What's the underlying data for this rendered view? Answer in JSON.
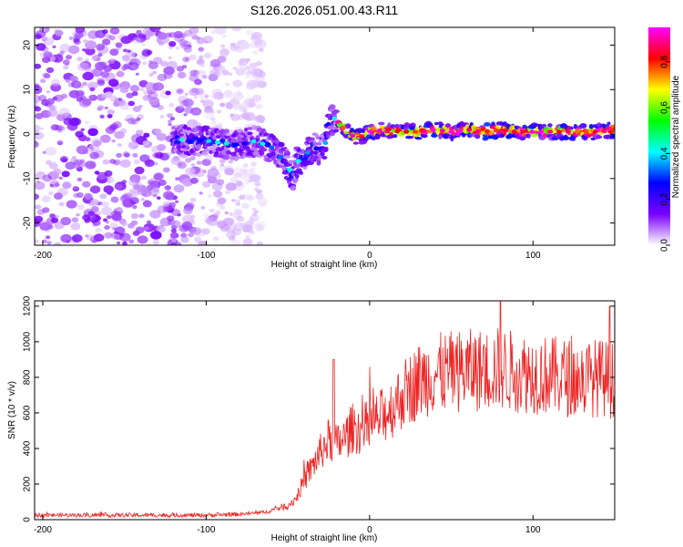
{
  "figure": {
    "title": "S126.2026.051.00.43.R11"
  },
  "chart_data": [
    {
      "type": "heatmap",
      "xlabel": "Height of straight line (km)",
      "ylabel": "Frequency (Hz)",
      "xlim": [
        -205,
        150
      ],
      "ylim": [
        -25,
        24
      ],
      "xticks": [
        -200,
        -100,
        0,
        100
      ],
      "yticks": [
        -20,
        -10,
        0,
        10,
        20
      ],
      "colorbar": {
        "label": "Normalized spectral amplitude",
        "range": [
          0,
          0.95
        ],
        "ticks": [
          0,
          0.2,
          0.4,
          0.6,
          0.8
        ],
        "tick_labels": [
          "0.0",
          "0.2",
          "0.4",
          "0.6",
          "0.8"
        ],
        "colormap": [
          "#ffffff",
          "#7a00ff",
          "#0000ff",
          "#00ffff",
          "#00ff00",
          "#ffff00",
          "#ff0000",
          "#ff00ff"
        ]
      },
      "ridge": {
        "description": "dominant-frequency trace",
        "x": [
          -120,
          -110,
          -100,
          -90,
          -80,
          -70,
          -60,
          -55,
          -50,
          -47,
          -45,
          -40,
          -35,
          -30,
          -27,
          -25,
          -22,
          -20,
          -18,
          -15,
          -10,
          -5,
          0,
          10,
          20,
          30,
          40,
          50,
          60,
          70,
          80,
          90,
          100,
          110,
          120,
          130,
          140,
          150
        ],
        "y": [
          -1,
          -1.5,
          -1.5,
          -2,
          -2.5,
          -1.5,
          -3,
          -5,
          -7,
          -10,
          -6.5,
          -5,
          -3,
          -3.5,
          -2,
          2,
          3.5,
          3.5,
          2.5,
          1,
          -0.5,
          -0.5,
          0.5,
          1,
          0.5,
          0.5,
          1,
          0.5,
          1,
          0.5,
          1,
          0.5,
          0.5,
          0.5,
          0.5,
          0.5,
          0.5,
          1
        ]
      },
      "noise_region_x": [
        -205,
        -65
      ]
    },
    {
      "type": "line",
      "xlabel": "Height of straight line (km)",
      "ylabel": "SNR (10 * v/v)",
      "xlim": [
        -205,
        150
      ],
      "ylim": [
        0,
        1230
      ],
      "xticks": [
        -200,
        -100,
        0,
        100
      ],
      "yticks": [
        0,
        200,
        400,
        600,
        800,
        1000,
        1200
      ],
      "series": [
        {
          "name": "SNR",
          "color": "#ee2222",
          "x": [
            -205,
            -180,
            -150,
            -120,
            -100,
            -80,
            -65,
            -50,
            -45,
            -40,
            -35,
            -30,
            -25,
            -20,
            -15,
            -10,
            -5,
            0,
            5,
            10,
            15,
            20,
            25,
            30,
            40,
            50,
            60,
            70,
            80,
            90,
            100,
            110,
            120,
            130,
            140,
            150
          ],
          "y": [
            25,
            25,
            25,
            25,
            25,
            30,
            40,
            80,
            120,
            220,
            300,
            380,
            450,
            420,
            460,
            520,
            500,
            540,
            560,
            600,
            640,
            700,
            740,
            780,
            820,
            830,
            840,
            840,
            850,
            830,
            820,
            810,
            800,
            790,
            800,
            780
          ]
        }
      ],
      "peaks": {
        "x": [
          -22,
          80,
          147
        ],
        "y": [
          900,
          1230,
          1200
        ]
      }
    }
  ]
}
